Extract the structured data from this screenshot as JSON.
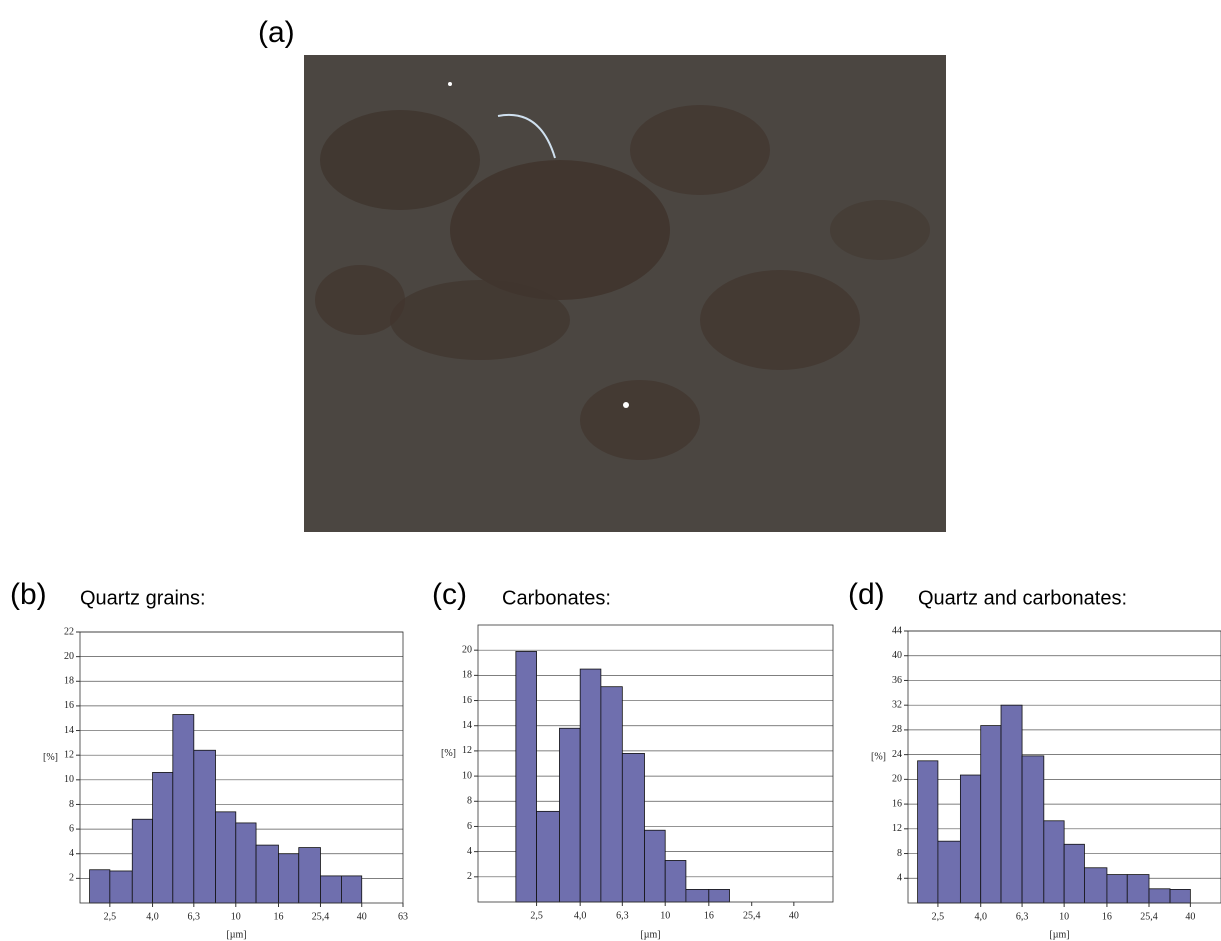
{
  "image": {
    "label": "(a)"
  },
  "chart_data": [
    {
      "type": "histogram",
      "panel_label": "(b)",
      "title": "Quartz grains:",
      "xlabel": "[µm]",
      "ylabel": "[%]",
      "bins": [
        2,
        2.5,
        3.2,
        4,
        5,
        6.3,
        8,
        10,
        12.5,
        16,
        20,
        25.4,
        32,
        40
      ],
      "values": [
        2.7,
        2.6,
        6.8,
        10.6,
        15.3,
        12.4,
        7.4,
        6.5,
        4.7,
        4.0,
        4.5,
        2.2,
        2.2
      ],
      "color": "#6f6fae",
      "log_x": true,
      "grid": true,
      "xlim": [
        1.8,
        63
      ],
      "ylim": [
        0,
        22
      ],
      "xticks": [
        {
          "value": 2.5,
          "label": "2,5"
        },
        {
          "value": 4,
          "label": "4,0"
        },
        {
          "value": 6.3,
          "label": "6,3"
        },
        10,
        16,
        {
          "value": 25.4,
          "label": "25,4"
        },
        40,
        63
      ],
      "yticks": [
        2,
        4,
        6,
        8,
        10,
        12,
        14,
        16,
        18,
        20,
        22
      ]
    },
    {
      "type": "histogram",
      "panel_label": "(c)",
      "title": "Carbonates:",
      "xlabel": "[µm]",
      "ylabel": "[%]",
      "bins": [
        2,
        2.5,
        3.2,
        4,
        5,
        6.3,
        8,
        10,
        12.5,
        16,
        20
      ],
      "values": [
        19.9,
        7.2,
        13.8,
        18.5,
        17.1,
        11.8,
        5.7,
        3.3,
        1.0,
        1.0
      ],
      "color": "#6f6fae",
      "log_x": true,
      "grid": true,
      "xlim": [
        1.33,
        61
      ],
      "ylim": [
        0,
        22
      ],
      "xticks": [
        {
          "value": 2.5,
          "label": "2,5"
        },
        {
          "value": 4,
          "label": "4,0"
        },
        {
          "value": 6.3,
          "label": "6,3"
        },
        10,
        16,
        {
          "value": 25.4,
          "label": "25,4"
        },
        40
      ],
      "yticks": [
        2,
        4,
        6,
        8,
        10,
        12,
        14,
        16,
        18,
        20
      ]
    },
    {
      "type": "histogram",
      "panel_label": "(d)",
      "title": "Quartz and carbonates:",
      "xlabel": "[µm]",
      "ylabel": "[%]",
      "bins": [
        2,
        2.5,
        3.2,
        4,
        5,
        6.3,
        8,
        10,
        12.5,
        16,
        20,
        25.4,
        32,
        40
      ],
      "values": [
        23,
        10,
        20.7,
        28.7,
        32,
        23.8,
        13.3,
        9.5,
        5.7,
        4.6,
        4.6,
        2.3,
        2.2
      ],
      "color": "#6f6fae",
      "log_x": true,
      "grid": true,
      "xlim": [
        1.8,
        56
      ],
      "ylim": [
        0,
        44
      ],
      "xticks": [
        {
          "value": 2.5,
          "label": "2,5"
        },
        {
          "value": 4,
          "label": "4,0"
        },
        {
          "value": 6.3,
          "label": "6,3"
        },
        10,
        16,
        {
          "value": 25.4,
          "label": "25,4"
        },
        40
      ],
      "yticks": [
        4,
        8,
        12,
        16,
        20,
        24,
        28,
        32,
        36,
        40,
        44
      ]
    }
  ]
}
